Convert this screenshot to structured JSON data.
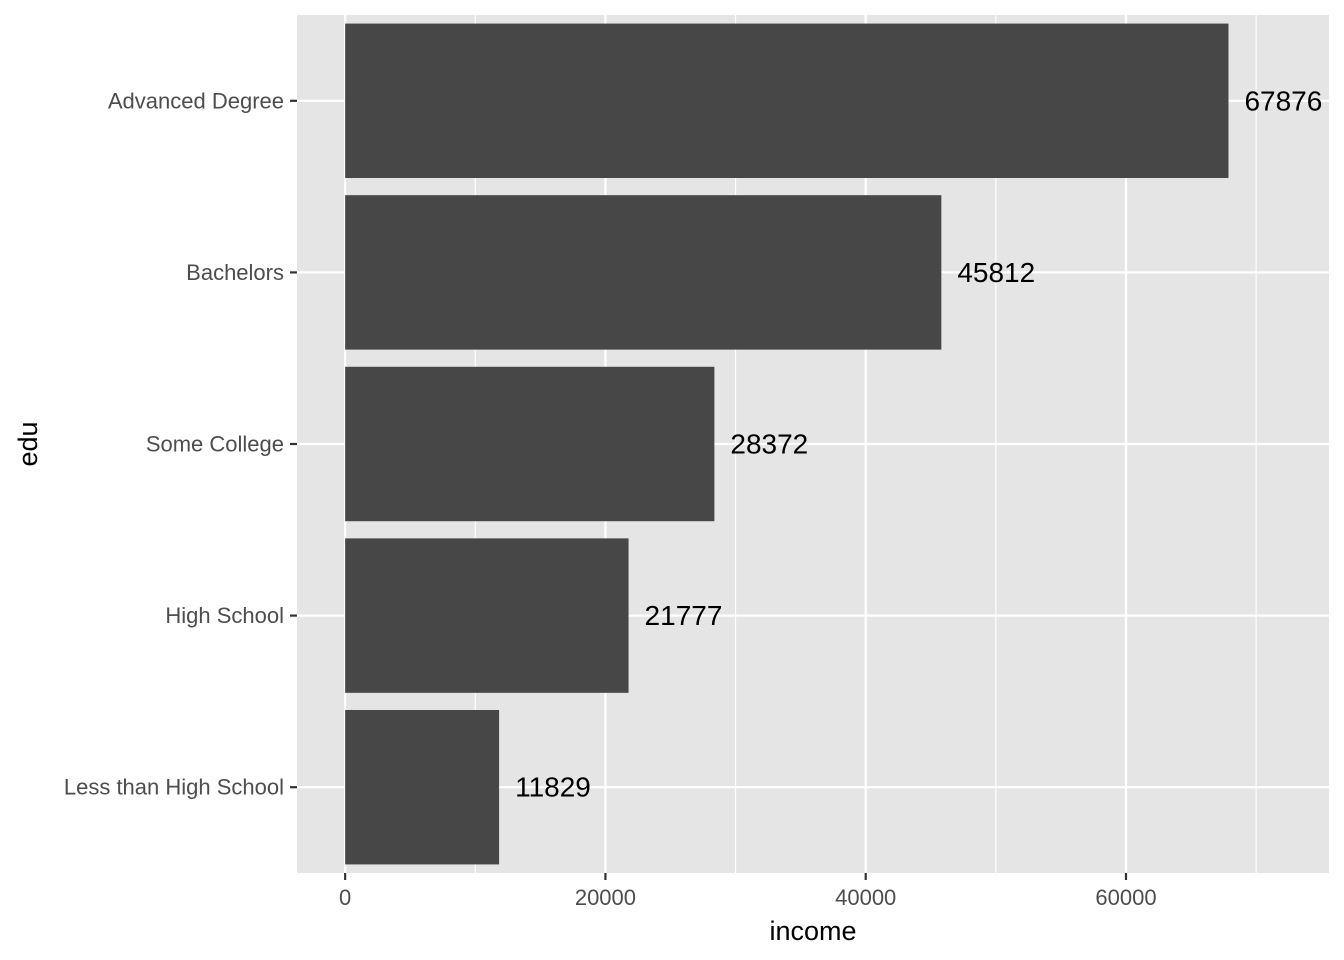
{
  "chart_data": {
    "type": "bar",
    "orientation": "horizontal",
    "categories": [
      "Less than High School",
      "High School",
      "Some College",
      "Bachelors",
      "Advanced Degree"
    ],
    "values": [
      11829,
      21777,
      28372,
      45812,
      67876
    ],
    "data_labels": [
      "11829",
      "21777",
      "28372",
      "45812",
      "67876"
    ],
    "xlabel": "income",
    "ylabel": "edu",
    "xlim": [
      -3700,
      75600
    ],
    "x_ticks": [
      0,
      20000,
      40000,
      60000
    ],
    "x_tick_labels": [
      "0",
      "20000",
      "40000",
      "60000"
    ],
    "x_minor_ticks": [
      10000,
      30000,
      50000,
      70000
    ],
    "grid": true,
    "colors": {
      "panel": "#e5e5e5",
      "grid": "#ffffff",
      "bar": "#474747",
      "tick_label": "#4d4d4d",
      "text": "#000000"
    }
  }
}
